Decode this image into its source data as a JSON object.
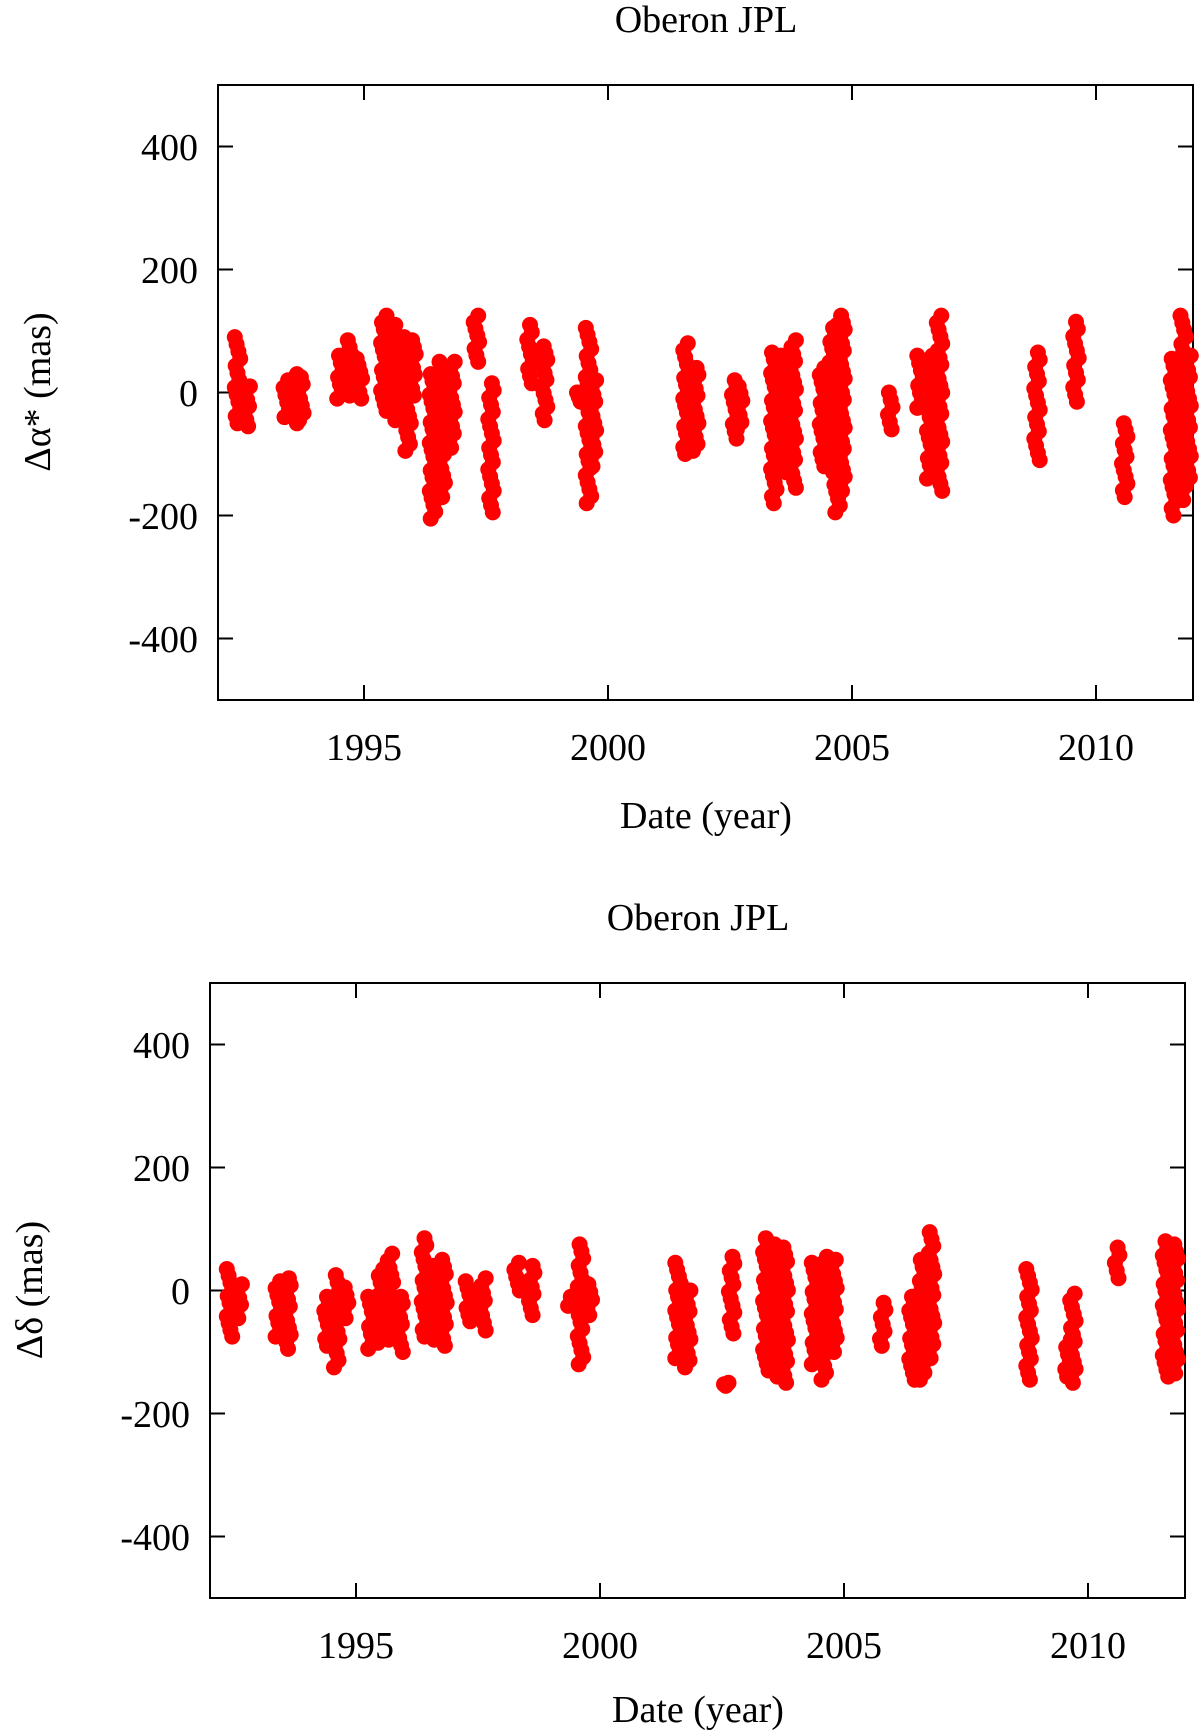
{
  "chart_data": [
    {
      "type": "scatter",
      "title": "Oberon JPL",
      "xlabel": "Date (year)",
      "ylabel": "Δα* (mas)",
      "xlim": [
        1992.0,
        2012.0
      ],
      "ylim": [
        -500,
        500
      ],
      "xticks": [
        "1995",
        "2000",
        "2005",
        "2010"
      ],
      "yticks": [
        "400",
        "200",
        "0",
        "-200",
        "-400"
      ],
      "grid": false,
      "marker_color": "#ff0000",
      "clusters": [
        {
          "x": 1992.4,
          "ymin": -50,
          "ymax": 90
        },
        {
          "x": 1992.6,
          "ymin": -55,
          "ymax": 10
        },
        {
          "x": 1993.4,
          "ymin": -40,
          "ymax": 20
        },
        {
          "x": 1993.6,
          "ymin": -50,
          "ymax": 30
        },
        {
          "x": 1993.7,
          "ymin": -45,
          "ymax": 25
        },
        {
          "x": 1994.5,
          "ymin": -10,
          "ymax": 60
        },
        {
          "x": 1994.7,
          "ymin": -5,
          "ymax": 85
        },
        {
          "x": 1994.9,
          "ymin": -10,
          "ymax": 55
        },
        {
          "x": 1995.4,
          "ymin": -30,
          "ymax": 125
        },
        {
          "x": 1995.6,
          "ymin": -45,
          "ymax": 110
        },
        {
          "x": 1995.8,
          "ymin": -40,
          "ymax": 90
        },
        {
          "x": 1995.9,
          "ymin": -95,
          "ymax": 85
        },
        {
          "x": 1996.0,
          "ymin": -5,
          "ymax": 85
        },
        {
          "x": 1996.4,
          "ymin": -205,
          "ymax": 30
        },
        {
          "x": 1996.6,
          "ymin": -170,
          "ymax": 50
        },
        {
          "x": 1996.8,
          "ymin": -90,
          "ymax": 50
        },
        {
          "x": 1997.3,
          "ymin": 50,
          "ymax": 125
        },
        {
          "x": 1997.6,
          "ymin": -195,
          "ymax": 15
        },
        {
          "x": 1998.4,
          "ymin": 15,
          "ymax": 110
        },
        {
          "x": 1998.7,
          "ymin": -45,
          "ymax": 75
        },
        {
          "x": 1999.4,
          "ymin": -15,
          "ymax": 0
        },
        {
          "x": 1999.6,
          "ymin": -180,
          "ymax": 105
        },
        {
          "x": 1999.7,
          "ymin": -120,
          "ymax": 20
        },
        {
          "x": 2001.6,
          "ymin": -100,
          "ymax": 80
        },
        {
          "x": 2001.8,
          "ymin": -95,
          "ymax": 40
        },
        {
          "x": 2002.6,
          "ymin": -75,
          "ymax": 20
        },
        {
          "x": 2002.7,
          "ymin": -60,
          "ymax": 10
        },
        {
          "x": 2003.4,
          "ymin": -180,
          "ymax": 65
        },
        {
          "x": 2003.6,
          "ymin": -130,
          "ymax": 60
        },
        {
          "x": 2003.8,
          "ymin": -155,
          "ymax": 85
        },
        {
          "x": 2004.4,
          "ymin": -120,
          "ymax": 40
        },
        {
          "x": 2004.6,
          "ymin": -130,
          "ymax": 105
        },
        {
          "x": 2004.7,
          "ymin": -195,
          "ymax": 110
        },
        {
          "x": 2004.8,
          "ymin": -160,
          "ymax": 125
        },
        {
          "x": 2005.8,
          "ymin": -60,
          "ymax": 0
        },
        {
          "x": 2006.4,
          "ymin": -25,
          "ymax": 60
        },
        {
          "x": 2006.6,
          "ymin": -140,
          "ymax": 60
        },
        {
          "x": 2006.8,
          "ymin": -160,
          "ymax": 125
        },
        {
          "x": 2008.8,
          "ymin": -110,
          "ymax": 65
        },
        {
          "x": 2009.6,
          "ymin": -15,
          "ymax": 115
        },
        {
          "x": 2010.6,
          "ymin": -170,
          "ymax": -50
        },
        {
          "x": 2011.6,
          "ymin": -200,
          "ymax": 55
        },
        {
          "x": 2011.8,
          "ymin": -175,
          "ymax": 125
        },
        {
          "x": 2011.9,
          "ymin": -150,
          "ymax": 60
        }
      ]
    },
    {
      "type": "scatter",
      "title": "Oberon JPL",
      "xlabel": "Date (year)",
      "ylabel": "Δδ (mas)",
      "xlim": [
        1992.0,
        2012.0
      ],
      "ylim": [
        -500,
        500
      ],
      "xticks": [
        "1995",
        "2000",
        "2005",
        "2010"
      ],
      "yticks": [
        "400",
        "200",
        "0",
        "-200",
        "-400"
      ],
      "grid": false,
      "marker_color": "#ff0000",
      "clusters": [
        {
          "x": 1992.4,
          "ymin": -75,
          "ymax": 35
        },
        {
          "x": 1992.6,
          "ymin": -45,
          "ymax": 10
        },
        {
          "x": 1993.4,
          "ymin": -75,
          "ymax": 15
        },
        {
          "x": 1993.6,
          "ymin": -95,
          "ymax": 20
        },
        {
          "x": 1994.4,
          "ymin": -90,
          "ymax": -10
        },
        {
          "x": 1994.6,
          "ymin": -125,
          "ymax": 25
        },
        {
          "x": 1994.8,
          "ymin": -45,
          "ymax": 5
        },
        {
          "x": 1995.3,
          "ymin": -95,
          "ymax": -10
        },
        {
          "x": 1995.5,
          "ymin": -85,
          "ymax": 35
        },
        {
          "x": 1995.7,
          "ymin": -80,
          "ymax": 60
        },
        {
          "x": 1995.9,
          "ymin": -100,
          "ymax": -10
        },
        {
          "x": 1996.4,
          "ymin": -75,
          "ymax": 85
        },
        {
          "x": 1996.6,
          "ymin": -80,
          "ymax": 40
        },
        {
          "x": 1996.8,
          "ymin": -90,
          "ymax": 50
        },
        {
          "x": 1997.3,
          "ymin": -50,
          "ymax": 15
        },
        {
          "x": 1997.6,
          "ymin": -65,
          "ymax": 20
        },
        {
          "x": 1998.3,
          "ymin": 0,
          "ymax": 45
        },
        {
          "x": 1998.6,
          "ymin": -40,
          "ymax": 40
        },
        {
          "x": 1999.4,
          "ymin": -25,
          "ymax": -10
        },
        {
          "x": 1999.6,
          "ymin": -120,
          "ymax": 75
        },
        {
          "x": 1999.8,
          "ymin": -40,
          "ymax": 10
        },
        {
          "x": 2001.6,
          "ymin": -110,
          "ymax": 45
        },
        {
          "x": 2001.8,
          "ymin": -125,
          "ymax": 0
        },
        {
          "x": 2002.6,
          "ymin": -155,
          "ymax": -150
        },
        {
          "x": 2002.7,
          "ymin": -70,
          "ymax": 55
        },
        {
          "x": 2003.4,
          "ymin": -130,
          "ymax": 85
        },
        {
          "x": 2003.6,
          "ymin": -140,
          "ymax": 75
        },
        {
          "x": 2003.8,
          "ymin": -150,
          "ymax": 70
        },
        {
          "x": 2004.4,
          "ymin": -120,
          "ymax": 45
        },
        {
          "x": 2004.6,
          "ymin": -145,
          "ymax": 55
        },
        {
          "x": 2004.8,
          "ymin": -100,
          "ymax": 50
        },
        {
          "x": 2005.8,
          "ymin": -90,
          "ymax": -20
        },
        {
          "x": 2006.4,
          "ymin": -145,
          "ymax": -10
        },
        {
          "x": 2006.6,
          "ymin": -145,
          "ymax": 50
        },
        {
          "x": 2006.8,
          "ymin": -110,
          "ymax": 95
        },
        {
          "x": 2008.8,
          "ymin": -145,
          "ymax": 35
        },
        {
          "x": 2009.6,
          "ymin": -140,
          "ymax": -80
        },
        {
          "x": 2009.7,
          "ymin": -150,
          "ymax": -5
        },
        {
          "x": 2010.6,
          "ymin": 20,
          "ymax": 70
        },
        {
          "x": 2011.6,
          "ymin": -140,
          "ymax": 80
        },
        {
          "x": 2011.8,
          "ymin": -135,
          "ymax": 75
        }
      ]
    }
  ]
}
